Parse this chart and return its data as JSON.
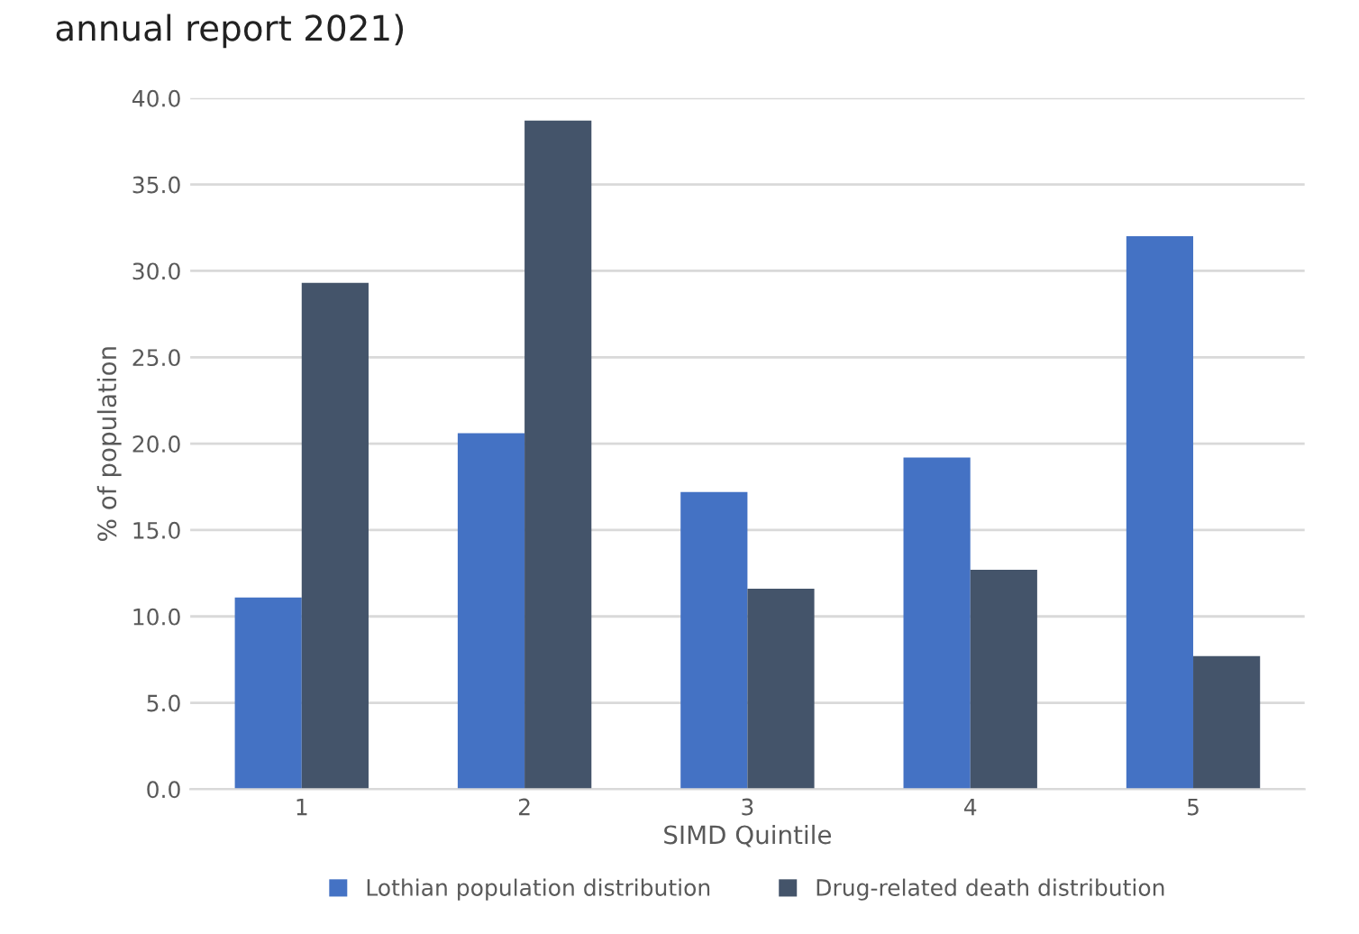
{
  "chart_data": {
    "type": "bar",
    "xlabel": "SIMD Quintile",
    "ylabel": "% of population",
    "annotations": [
      "annual report 2021)"
    ],
    "categories": [
      "1",
      "2",
      "3",
      "4",
      "5"
    ],
    "series": [
      {
        "name": "Lothian population distribution",
        "color": "#4472c4",
        "values": [
          11.1,
          20.6,
          17.2,
          19.2,
          32.0
        ]
      },
      {
        "name": "Drug-related death distribution",
        "color": "#44546a",
        "values": [
          29.3,
          38.7,
          11.6,
          12.7,
          7.7
        ]
      }
    ],
    "ylim": [
      0,
      40
    ],
    "yticks": [
      {
        "value": 0,
        "label": "0.0"
      },
      {
        "value": 5,
        "label": "5.0"
      },
      {
        "value": 10,
        "label": "10.0"
      },
      {
        "value": 15,
        "label": "15.0"
      },
      {
        "value": 20,
        "label": "20.0"
      },
      {
        "value": 25,
        "label": "25.0"
      },
      {
        "value": 30,
        "label": "30.0"
      },
      {
        "value": 35,
        "label": "35.0"
      },
      {
        "value": 40,
        "label": "40.0"
      }
    ],
    "grid": "y",
    "legend": "bottom"
  }
}
